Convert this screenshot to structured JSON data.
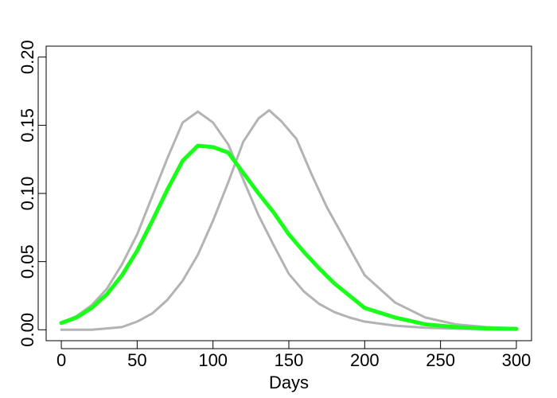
{
  "chart_data": {
    "type": "line",
    "title": "",
    "xlabel": "Days",
    "ylabel": "",
    "xlim": [
      0,
      300
    ],
    "ylim": [
      0,
      0.2
    ],
    "xticks": [
      0,
      50,
      100,
      150,
      200,
      250,
      300
    ],
    "yticks": [
      0.0,
      0.05,
      0.1,
      0.15,
      0.2
    ],
    "xtick_labels": [
      "0",
      "50",
      "100",
      "150",
      "200",
      "250",
      "300"
    ],
    "ytick_labels": [
      "0.00",
      "0.05",
      "0.10",
      "0.15",
      "0.20"
    ],
    "grid": false,
    "legend": "none",
    "series": [
      {
        "color": "#b3b3b3",
        "points": [
          [
            0,
            0.005
          ],
          [
            10,
            0.01
          ],
          [
            20,
            0.018
          ],
          [
            30,
            0.03
          ],
          [
            40,
            0.048
          ],
          [
            50,
            0.07
          ],
          [
            60,
            0.098
          ],
          [
            70,
            0.126
          ],
          [
            80,
            0.152
          ],
          [
            90,
            0.16
          ],
          [
            100,
            0.152
          ],
          [
            110,
            0.136
          ],
          [
            120,
            0.11
          ],
          [
            130,
            0.084
          ],
          [
            140,
            0.062
          ],
          [
            150,
            0.041
          ],
          [
            160,
            0.028
          ],
          [
            170,
            0.019
          ],
          [
            180,
            0.013
          ],
          [
            190,
            0.009
          ],
          [
            200,
            0.006
          ],
          [
            220,
            0.003
          ],
          [
            240,
            0.0015
          ],
          [
            260,
            0.0008
          ],
          [
            280,
            0.0004
          ],
          [
            300,
            0.0002
          ]
        ]
      },
      {
        "color": "#b3b3b3",
        "points": [
          [
            0,
            0.0
          ],
          [
            20,
            0.0
          ],
          [
            30,
            0.001
          ],
          [
            40,
            0.002
          ],
          [
            50,
            0.006
          ],
          [
            60,
            0.012
          ],
          [
            70,
            0.022
          ],
          [
            80,
            0.036
          ],
          [
            90,
            0.055
          ],
          [
            100,
            0.08
          ],
          [
            110,
            0.108
          ],
          [
            120,
            0.138
          ],
          [
            130,
            0.155
          ],
          [
            137,
            0.161
          ],
          [
            145,
            0.153
          ],
          [
            155,
            0.14
          ],
          [
            165,
            0.114
          ],
          [
            175,
            0.09
          ],
          [
            185,
            0.07
          ],
          [
            200,
            0.04
          ],
          [
            220,
            0.02
          ],
          [
            240,
            0.009
          ],
          [
            260,
            0.004
          ],
          [
            280,
            0.002
          ],
          [
            300,
            0.001
          ]
        ]
      },
      {
        "color": "#1aff1a",
        "points": [
          [
            0,
            0.005
          ],
          [
            10,
            0.009
          ],
          [
            20,
            0.016
          ],
          [
            30,
            0.026
          ],
          [
            40,
            0.04
          ],
          [
            50,
            0.058
          ],
          [
            60,
            0.08
          ],
          [
            70,
            0.103
          ],
          [
            80,
            0.124
          ],
          [
            90,
            0.135
          ],
          [
            100,
            0.134
          ],
          [
            110,
            0.13
          ],
          [
            120,
            0.115
          ],
          [
            130,
            0.1
          ],
          [
            140,
            0.086
          ],
          [
            150,
            0.07
          ],
          [
            160,
            0.057
          ],
          [
            170,
            0.045
          ],
          [
            180,
            0.034
          ],
          [
            190,
            0.025
          ],
          [
            200,
            0.016
          ],
          [
            220,
            0.009
          ],
          [
            240,
            0.004
          ],
          [
            260,
            0.002
          ],
          [
            280,
            0.001
          ],
          [
            300,
            0.0007
          ]
        ]
      }
    ]
  }
}
